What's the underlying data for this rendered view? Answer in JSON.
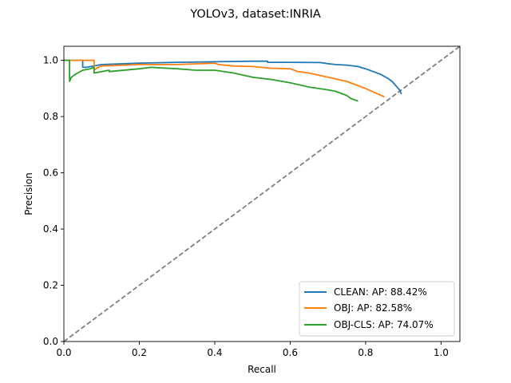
{
  "chart_data": {
    "type": "line",
    "title": "YOLOv3, dataset:INRIA",
    "xlabel": "Recall",
    "ylabel": "Precision",
    "xlim": [
      0,
      1.05
    ],
    "ylim": [
      0,
      1.05
    ],
    "xticks": [
      0.0,
      0.2,
      0.4,
      0.6,
      0.8,
      1.0
    ],
    "yticks": [
      0.0,
      0.2,
      0.4,
      0.6,
      0.8,
      1.0
    ],
    "xtick_labels": [
      "0.0",
      "0.2",
      "0.4",
      "0.6",
      "0.8",
      "1.0"
    ],
    "ytick_labels": [
      "0.0",
      "0.2",
      "0.4",
      "0.6",
      "0.8",
      "1.0"
    ],
    "grid": false,
    "legend_position": "lower-right",
    "reference_line": {
      "x": [
        0,
        1.05
      ],
      "y": [
        0,
        1.05
      ],
      "color": "#808080",
      "style": "dashed"
    },
    "series": [
      {
        "name": "CLEAN: AP: 88.42%",
        "color": "#1f77b4",
        "x": [
          0.0,
          0.05,
          0.05,
          0.06,
          0.1,
          0.2,
          0.3,
          0.4,
          0.5,
          0.54,
          0.54,
          0.6,
          0.68,
          0.7,
          0.72,
          0.75,
          0.78,
          0.8,
          0.82,
          0.84,
          0.86,
          0.87,
          0.88,
          0.89,
          0.895
        ],
        "y": [
          1.0,
          1.0,
          0.975,
          0.975,
          0.985,
          0.99,
          0.993,
          0.995,
          0.997,
          0.997,
          0.993,
          0.993,
          0.992,
          0.988,
          0.985,
          0.983,
          0.978,
          0.97,
          0.96,
          0.95,
          0.935,
          0.925,
          0.91,
          0.895,
          0.88
        ]
      },
      {
        "name": "OBJ: AP: 82.58%",
        "color": "#ff7f0e",
        "x": [
          0.0,
          0.08,
          0.08,
          0.09,
          0.1,
          0.2,
          0.3,
          0.4,
          0.41,
          0.45,
          0.5,
          0.55,
          0.6,
          0.62,
          0.65,
          0.7,
          0.75,
          0.8,
          0.85
        ],
        "y": [
          1.0,
          1.0,
          0.965,
          0.975,
          0.98,
          0.985,
          0.985,
          0.99,
          0.985,
          0.98,
          0.978,
          0.972,
          0.97,
          0.96,
          0.955,
          0.94,
          0.925,
          0.9,
          0.87
        ]
      },
      {
        "name": "OBJ-CLS: AP: 74.07%",
        "color": "#2ca02c",
        "x": [
          0.0,
          0.015,
          0.015,
          0.02,
          0.03,
          0.05,
          0.07,
          0.08,
          0.08,
          0.1,
          0.12,
          0.12,
          0.2,
          0.23,
          0.3,
          0.35,
          0.4,
          0.45,
          0.5,
          0.55,
          0.6,
          0.65,
          0.7,
          0.72,
          0.74,
          0.75,
          0.76,
          0.77,
          0.78
        ],
        "y": [
          1.0,
          1.0,
          0.925,
          0.94,
          0.95,
          0.965,
          0.97,
          0.975,
          0.955,
          0.96,
          0.965,
          0.96,
          0.97,
          0.975,
          0.97,
          0.965,
          0.965,
          0.955,
          0.94,
          0.932,
          0.92,
          0.905,
          0.895,
          0.89,
          0.88,
          0.875,
          0.865,
          0.86,
          0.855
        ]
      }
    ]
  }
}
